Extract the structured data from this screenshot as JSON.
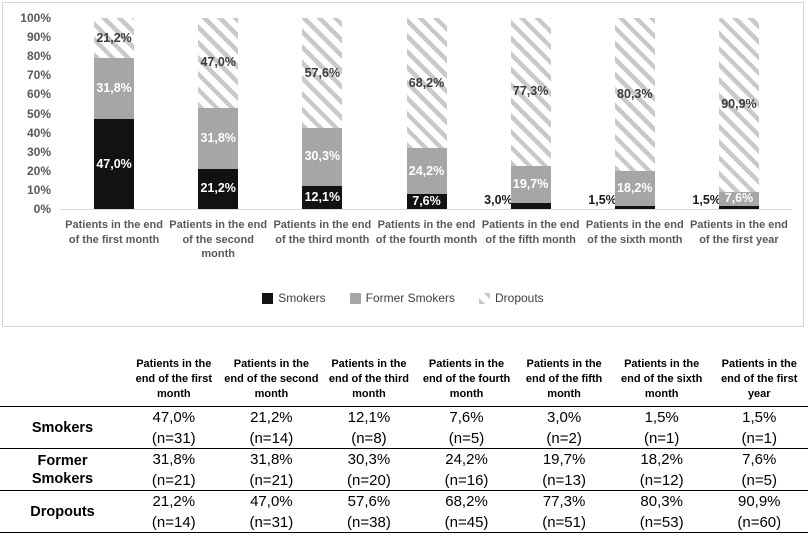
{
  "chart_data": {
    "type": "bar",
    "subtype": "100-percent-stacked-column",
    "title": "",
    "xlabel": "",
    "ylabel": "",
    "ylim": [
      0,
      100
    ],
    "grid": false,
    "legend_position": "bottom",
    "y_ticks": [
      "0%",
      "10%",
      "20%",
      "30%",
      "40%",
      "50%",
      "60%",
      "70%",
      "80%",
      "90%",
      "100%"
    ],
    "categories": [
      "Patients in the end of the first month",
      "Patients in the end of the second month",
      "Patients in the end of the third month",
      "Patients in the end of the fourth month",
      "Patients in the end of the fifth month",
      "Patients in the end of the sixth month",
      "Patients in the end of the first year"
    ],
    "series": [
      {
        "name": "Smokers",
        "color": "#121212",
        "values": [
          47.0,
          21.2,
          12.1,
          7.6,
          3.0,
          1.5,
          1.5
        ],
        "data_labels": [
          "47,0%",
          "21,2%",
          "12,1%",
          "7,6%",
          "3,0%",
          "1,5%",
          "1,5%"
        ]
      },
      {
        "name": "Former Smokers",
        "color": "#a6a6a6",
        "values": [
          31.8,
          31.8,
          30.3,
          24.2,
          19.7,
          18.2,
          7.6
        ],
        "data_labels": [
          "31,8%",
          "31,8%",
          "30,3%",
          "24,2%",
          "19,7%",
          "18,2%",
          "7,6%"
        ]
      },
      {
        "name": "Dropouts",
        "fill": "diagonal-hatch",
        "hatch_color": "#c9c9c9",
        "values": [
          21.2,
          47.0,
          57.6,
          68.2,
          77.3,
          80.3,
          90.9
        ],
        "data_labels": [
          "21,2%",
          "47,0%",
          "57,6%",
          "68,2%",
          "77,3%",
          "80,3%",
          "90,9%"
        ]
      }
    ]
  },
  "table": {
    "column_headers": [
      "Patients in the end of the first month",
      "Patients in the end of the second month",
      "Patients in the end of the third month",
      "Patients in the end of the fourth month",
      "Patients in the end of the fifth month",
      "Patients in the end of the sixth month",
      "Patients in the end of the first year"
    ],
    "rows": [
      {
        "label": "Smokers",
        "cells": [
          {
            "pct": "47,0%",
            "n": "(n=31)"
          },
          {
            "pct": "21,2%",
            "n": "(n=14)"
          },
          {
            "pct": "12,1%",
            "n": "(n=8)"
          },
          {
            "pct": "7,6%",
            "n": "(n=5)"
          },
          {
            "pct": "3,0%",
            "n": "(n=2)"
          },
          {
            "pct": "1,5%",
            "n": "(n=1)"
          },
          {
            "pct": "1,5%",
            "n": "(n=1)"
          }
        ]
      },
      {
        "label": "Former Smokers",
        "cells": [
          {
            "pct": "31,8%",
            "n": "(n=21)"
          },
          {
            "pct": "31,8%",
            "n": "(n=21)"
          },
          {
            "pct": "30,3%",
            "n": "(n=20)"
          },
          {
            "pct": "24,2%",
            "n": "(n=16)"
          },
          {
            "pct": "19,7%",
            "n": "(n=13)"
          },
          {
            "pct": "18,2%",
            "n": "(n=12)"
          },
          {
            "pct": "7,6%",
            "n": "(n=5)"
          }
        ]
      },
      {
        "label": "Dropouts",
        "cells": [
          {
            "pct": "21,2%",
            "n": "(n=14)"
          },
          {
            "pct": "47,0%",
            "n": "(n=31)"
          },
          {
            "pct": "57,6%",
            "n": "(n=38)"
          },
          {
            "pct": "68,2%",
            "n": "(n=45)"
          },
          {
            "pct": "77,3%",
            "n": "(n=51)"
          },
          {
            "pct": "80,3%",
            "n": "(n=53)"
          },
          {
            "pct": "90,9%",
            "n": "(n=60)"
          }
        ]
      }
    ]
  },
  "colors": {
    "smokers": "#121212",
    "former_smokers": "#a6a6a6",
    "hatch_stripe": "#c9c9c9",
    "axis_text": "#595959",
    "legend_text": "#404040",
    "chart_border": "#d6d6d6",
    "table_line": "#000000"
  }
}
